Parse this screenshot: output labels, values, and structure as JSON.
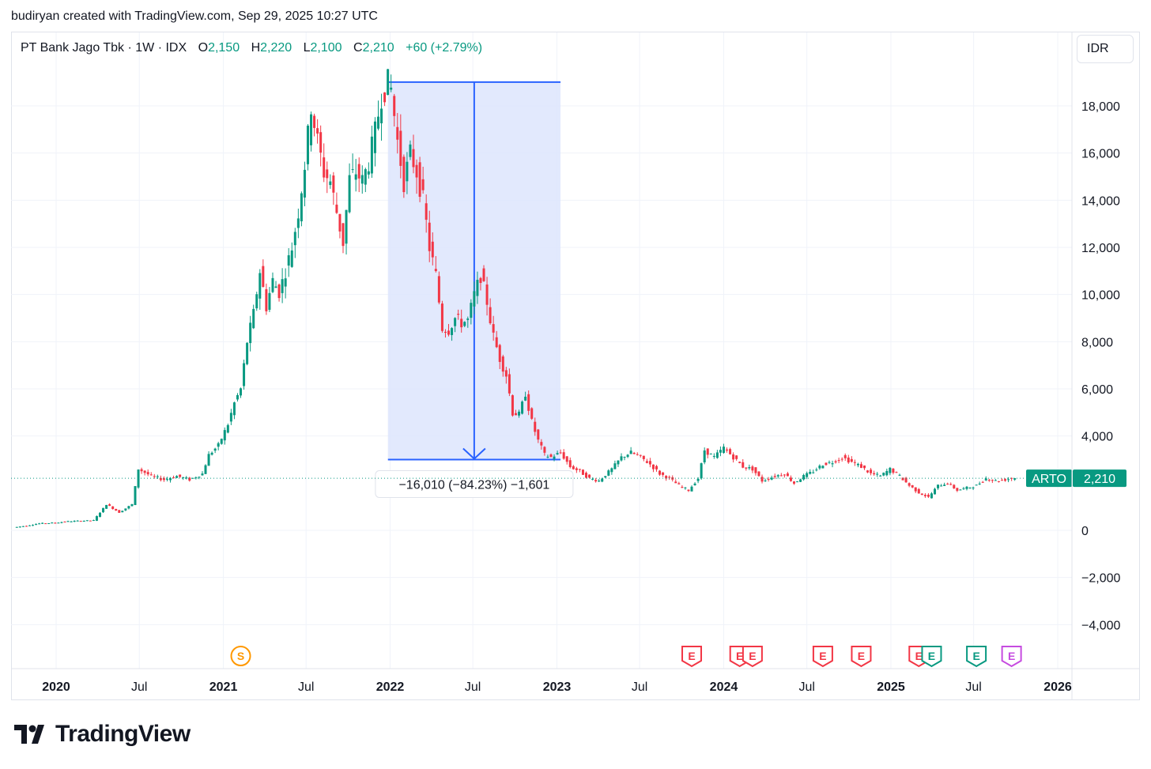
{
  "caption": "budiryan created with TradingView.com, Sep 29, 2025 10:27 UTC",
  "currency_label": "IDR",
  "brand": "TradingView",
  "legend": {
    "title": "PT Bank Jago Tbk · 1W · IDX",
    "open_key": "O",
    "open": "2,150",
    "high_key": "H",
    "high": "2,220",
    "low_key": "L",
    "low": "2,100",
    "close_key": "C",
    "close": "2,210",
    "change": "+60 (+2.79%)"
  },
  "colors": {
    "up": "#089981",
    "down": "#f23645",
    "measure_line": "#2962ff",
    "measure_fill": "#dde5fd",
    "grid": "#f0f3fa"
  },
  "measure": {
    "from_date": "2022-01-10",
    "to_date": "2022-12-26",
    "from_price": 19010,
    "to_price": 3000,
    "label": "−16,010 (−84.23%) −1,601"
  },
  "price_tag": {
    "symbol": "ARTO",
    "value": "2,210",
    "price": 2210
  },
  "chart_data": {
    "type": "candlestick",
    "title": "PT Bank Jago Tbk · 1W · IDX",
    "ylim": [
      -5800,
      20000
    ],
    "y_ticks": [
      18000,
      16000,
      14000,
      12000,
      10000,
      8000,
      6000,
      4000,
      0,
      -2000,
      -4000
    ],
    "y_tick_labels": [
      "18,000",
      "16,000",
      "14,000",
      "12,000",
      "10,000",
      "8,000",
      "6,000",
      "4,000",
      "0",
      "−2,000",
      "−4,000"
    ],
    "x_ticks": [
      {
        "date": "2020-01-01",
        "label": "2020",
        "year": true
      },
      {
        "date": "2020-07-01",
        "label": "Jul",
        "year": false
      },
      {
        "date": "2021-01-01",
        "label": "2021",
        "year": true
      },
      {
        "date": "2021-07-01",
        "label": "Jul",
        "year": false
      },
      {
        "date": "2022-01-01",
        "label": "2022",
        "year": true
      },
      {
        "date": "2022-07-01",
        "label": "Jul",
        "year": false
      },
      {
        "date": "2023-01-01",
        "label": "2023",
        "year": true
      },
      {
        "date": "2023-07-01",
        "label": "Jul",
        "year": false
      },
      {
        "date": "2024-01-01",
        "label": "2024",
        "year": true
      },
      {
        "date": "2024-07-01",
        "label": "Jul",
        "year": false
      },
      {
        "date": "2025-01-01",
        "label": "2025",
        "year": true
      },
      {
        "date": "2025-07-01",
        "label": "Jul",
        "year": false
      },
      {
        "date": "2026-01-01",
        "label": "2026",
        "year": true
      }
    ],
    "series": [
      {
        "date": "2019-10-07",
        "close": 120
      },
      {
        "date": "2019-11-04",
        "close": 200
      },
      {
        "date": "2019-12-02",
        "close": 290
      },
      {
        "date": "2020-01-06",
        "close": 320
      },
      {
        "date": "2020-02-03",
        "close": 380
      },
      {
        "date": "2020-03-02",
        "close": 400
      },
      {
        "date": "2020-03-30",
        "close": 420
      },
      {
        "date": "2020-04-27",
        "close": 1100
      },
      {
        "date": "2020-05-25",
        "close": 760
      },
      {
        "date": "2020-06-22",
        "close": 1100
      },
      {
        "date": "2020-07-06",
        "close": 2600
      },
      {
        "date": "2020-08-03",
        "close": 2300
      },
      {
        "date": "2020-08-31",
        "close": 2150
      },
      {
        "date": "2020-09-28",
        "close": 2300
      },
      {
        "date": "2020-10-26",
        "close": 2150
      },
      {
        "date": "2020-11-23",
        "close": 2400
      },
      {
        "date": "2020-12-07",
        "close": 3200
      },
      {
        "date": "2020-12-28",
        "close": 3600
      },
      {
        "date": "2021-01-18",
        "close": 4500
      },
      {
        "date": "2021-02-01",
        "close": 5400
      },
      {
        "date": "2021-02-15",
        "close": 6000
      },
      {
        "date": "2021-03-01",
        "close": 8000
      },
      {
        "date": "2021-03-15",
        "close": 9200
      },
      {
        "date": "2021-03-29",
        "close": 11000
      },
      {
        "date": "2021-04-12",
        "close": 9500
      },
      {
        "date": "2021-04-26",
        "close": 10600
      },
      {
        "date": "2021-05-10",
        "close": 10100
      },
      {
        "date": "2021-05-24",
        "close": 11000
      },
      {
        "date": "2021-06-07",
        "close": 12000
      },
      {
        "date": "2021-06-21",
        "close": 13500
      },
      {
        "date": "2021-07-05",
        "close": 15500
      },
      {
        "date": "2021-07-19",
        "close": 18000
      },
      {
        "date": "2021-08-02",
        "close": 16500
      },
      {
        "date": "2021-08-16",
        "close": 15200
      },
      {
        "date": "2021-08-30",
        "close": 14800
      },
      {
        "date": "2021-09-13",
        "close": 13500
      },
      {
        "date": "2021-09-27",
        "close": 12200
      },
      {
        "date": "2021-10-11",
        "close": 14900
      },
      {
        "date": "2021-10-25",
        "close": 15200
      },
      {
        "date": "2021-11-08",
        "close": 14800
      },
      {
        "date": "2021-11-22",
        "close": 15600
      },
      {
        "date": "2021-12-06",
        "close": 16900
      },
      {
        "date": "2021-12-20",
        "close": 18400
      },
      {
        "date": "2022-01-03",
        "close": 19000
      },
      {
        "date": "2022-01-10",
        "close": 18700
      },
      {
        "date": "2022-01-24",
        "close": 16500
      },
      {
        "date": "2022-02-07",
        "close": 14800
      },
      {
        "date": "2022-02-21",
        "close": 16000
      },
      {
        "date": "2022-03-07",
        "close": 15200
      },
      {
        "date": "2022-03-21",
        "close": 14000
      },
      {
        "date": "2022-04-04",
        "close": 12000
      },
      {
        "date": "2022-04-18",
        "close": 10800
      },
      {
        "date": "2022-05-02",
        "close": 8600
      },
      {
        "date": "2022-05-16",
        "close": 8500
      },
      {
        "date": "2022-05-30",
        "close": 9000
      },
      {
        "date": "2022-06-13",
        "close": 8800
      },
      {
        "date": "2022-06-27",
        "close": 8900
      },
      {
        "date": "2022-07-11",
        "close": 10000
      },
      {
        "date": "2022-07-25",
        "close": 10800
      },
      {
        "date": "2022-08-08",
        "close": 9700
      },
      {
        "date": "2022-08-22",
        "close": 8200
      },
      {
        "date": "2022-09-05",
        "close": 7300
      },
      {
        "date": "2022-09-19",
        "close": 6600
      },
      {
        "date": "2022-10-03",
        "close": 5000
      },
      {
        "date": "2022-10-17",
        "close": 4900
      },
      {
        "date": "2022-10-31",
        "close": 5800
      },
      {
        "date": "2022-11-14",
        "close": 4600
      },
      {
        "date": "2022-11-28",
        "close": 3800
      },
      {
        "date": "2022-12-12",
        "close": 3200
      },
      {
        "date": "2022-12-26",
        "close": 3100
      },
      {
        "date": "2023-01-16",
        "close": 3300
      },
      {
        "date": "2023-02-06",
        "close": 2700
      },
      {
        "date": "2023-02-27",
        "close": 2500
      },
      {
        "date": "2023-03-20",
        "close": 2200
      },
      {
        "date": "2023-04-10",
        "close": 2100
      },
      {
        "date": "2023-05-08",
        "close": 2600
      },
      {
        "date": "2023-05-29",
        "close": 3100
      },
      {
        "date": "2023-06-19",
        "close": 3300
      },
      {
        "date": "2023-07-10",
        "close": 3100
      },
      {
        "date": "2023-07-31",
        "close": 2800
      },
      {
        "date": "2023-08-21",
        "close": 2400
      },
      {
        "date": "2023-09-11",
        "close": 2200
      },
      {
        "date": "2023-10-02",
        "close": 1900
      },
      {
        "date": "2023-10-23",
        "close": 1700
      },
      {
        "date": "2023-11-13",
        "close": 2200
      },
      {
        "date": "2023-11-27",
        "close": 3400
      },
      {
        "date": "2023-12-18",
        "close": 3100
      },
      {
        "date": "2024-01-08",
        "close": 3500
      },
      {
        "date": "2024-01-29",
        "close": 3100
      },
      {
        "date": "2024-02-19",
        "close": 2700
      },
      {
        "date": "2024-03-11",
        "close": 2600
      },
      {
        "date": "2024-04-01",
        "close": 2100
      },
      {
        "date": "2024-04-29",
        "close": 2300
      },
      {
        "date": "2024-05-20",
        "close": 2400
      },
      {
        "date": "2024-06-10",
        "close": 2000
      },
      {
        "date": "2024-07-01",
        "close": 2300
      },
      {
        "date": "2024-07-22",
        "close": 2500
      },
      {
        "date": "2024-08-12",
        "close": 2800
      },
      {
        "date": "2024-09-02",
        "close": 2900
      },
      {
        "date": "2024-09-23",
        "close": 3100
      },
      {
        "date": "2024-10-14",
        "close": 2900
      },
      {
        "date": "2024-11-04",
        "close": 2700
      },
      {
        "date": "2024-11-25",
        "close": 2400
      },
      {
        "date": "2024-12-16",
        "close": 2300
      },
      {
        "date": "2025-01-06",
        "close": 2600
      },
      {
        "date": "2025-01-27",
        "close": 2300
      },
      {
        "date": "2025-02-17",
        "close": 1900
      },
      {
        "date": "2025-03-10",
        "close": 1600
      },
      {
        "date": "2025-03-31",
        "close": 1400
      },
      {
        "date": "2025-04-21",
        "close": 1900
      },
      {
        "date": "2025-05-12",
        "close": 2000
      },
      {
        "date": "2025-06-02",
        "close": 1700
      },
      {
        "date": "2025-06-23",
        "close": 1800
      },
      {
        "date": "2025-07-14",
        "close": 1900
      },
      {
        "date": "2025-08-04",
        "close": 2200
      },
      {
        "date": "2025-08-25",
        "close": 2100
      },
      {
        "date": "2025-09-15",
        "close": 2150
      },
      {
        "date": "2025-09-29",
        "close": 2210
      }
    ],
    "events": [
      {
        "date": "2021-02-08",
        "label": "S",
        "kind": "split"
      },
      {
        "date": "2023-10-23",
        "label": "E",
        "kind": "earnings-red"
      },
      {
        "date": "2024-02-05",
        "label": "E",
        "kind": "earnings-red"
      },
      {
        "date": "2024-03-04",
        "label": "E",
        "kind": "earnings-red"
      },
      {
        "date": "2024-08-05",
        "label": "E",
        "kind": "earnings-red"
      },
      {
        "date": "2024-10-28",
        "label": "E",
        "kind": "earnings-red"
      },
      {
        "date": "2025-03-03",
        "label": "E",
        "kind": "earnings-red"
      },
      {
        "date": "2025-03-31",
        "label": "E",
        "kind": "earnings-green"
      },
      {
        "date": "2025-07-07",
        "label": "E",
        "kind": "earnings-green"
      },
      {
        "date": "2025-09-22",
        "label": "E",
        "kind": "earnings-purple"
      }
    ]
  }
}
